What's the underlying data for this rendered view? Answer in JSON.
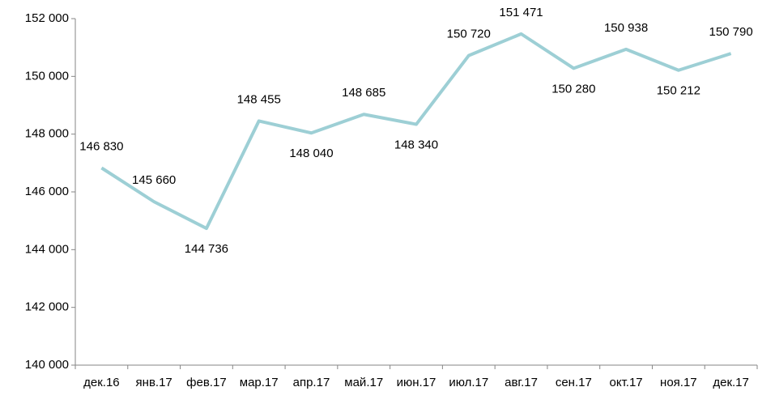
{
  "chart_data": {
    "type": "line",
    "categories": [
      "дек.16",
      "янв.17",
      "фев.17",
      "мар.17",
      "апр.17",
      "май.17",
      "июн.17",
      "июл.17",
      "авг.17",
      "сен.17",
      "окт.17",
      "ноя.17",
      "дек.17"
    ],
    "series": [
      {
        "color": "#9dcfd5",
        "values": [
          146830,
          145660,
          144736,
          148455,
          148040,
          148685,
          148340,
          150720,
          151471,
          150280,
          150938,
          150212,
          150790
        ],
        "value_labels": [
          "146 830",
          "145 660",
          "144 736",
          "148 455",
          "148 040",
          "148 685",
          "148 340",
          "150 720",
          "151 471",
          "150 280",
          "150 938",
          "150 212",
          "150 790"
        ]
      }
    ],
    "ylim": [
      140000,
      152000
    ],
    "yticks": [
      {
        "value": 140000,
        "label": "140 000"
      },
      {
        "value": 142000,
        "label": "142 000"
      },
      {
        "value": 144000,
        "label": "144 000"
      },
      {
        "value": 146000,
        "label": "146 000"
      },
      {
        "value": 148000,
        "label": "148 000"
      },
      {
        "value": 150000,
        "label": "150 000"
      },
      {
        "value": 152000,
        "label": "152 000"
      }
    ],
    "grid": false
  }
}
